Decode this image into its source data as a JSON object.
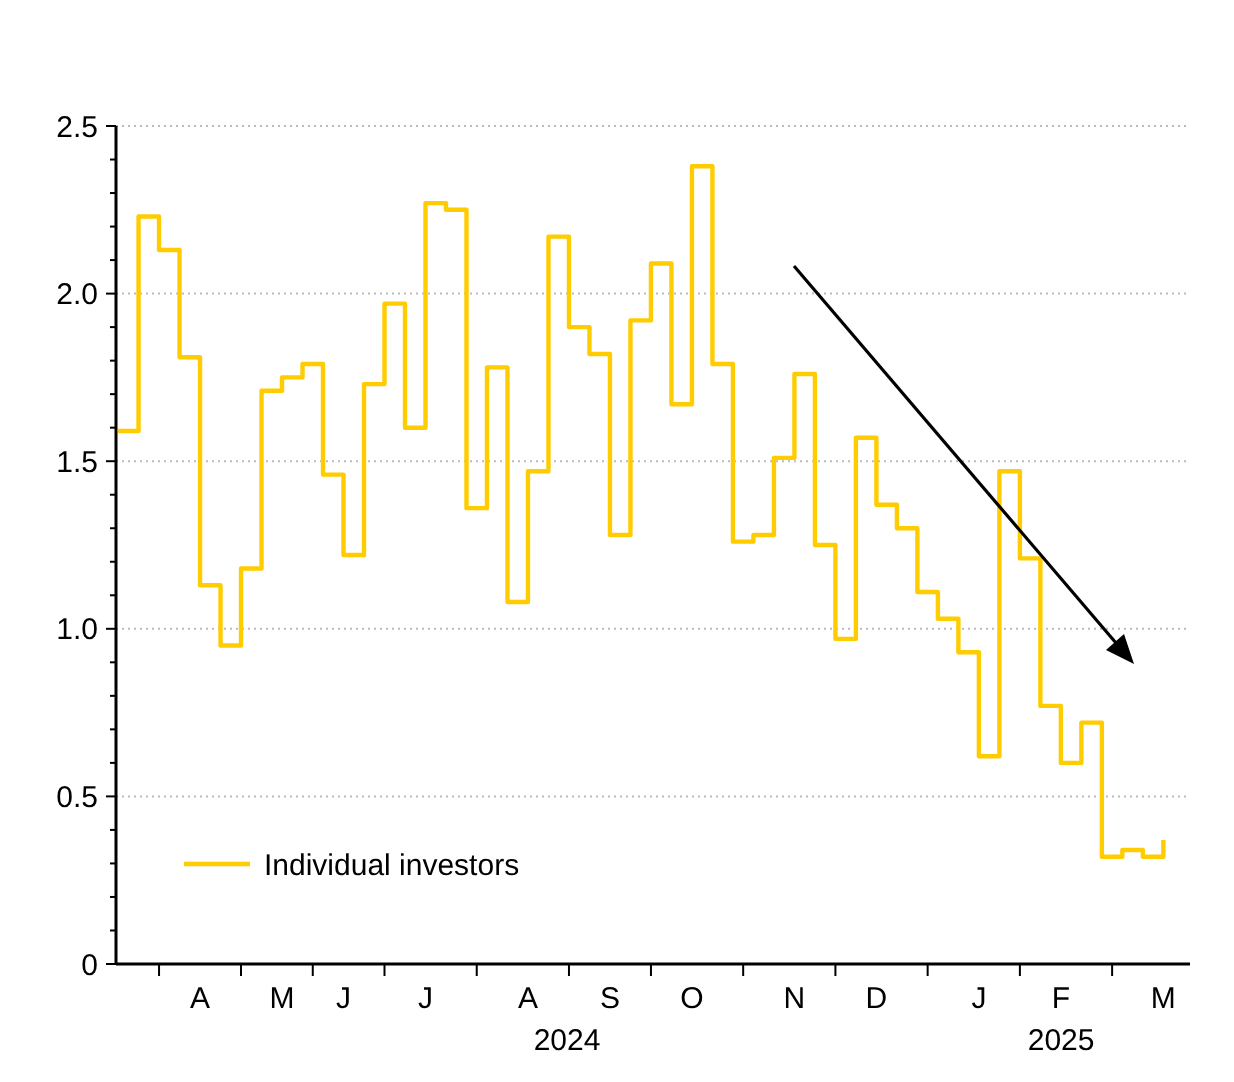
{
  "chart_data": {
    "type": "step",
    "categories": [
      null,
      null,
      null,
      null,
      "A",
      null,
      null,
      null,
      "M",
      null,
      null,
      "J",
      null,
      null,
      null,
      "J",
      null,
      null,
      null,
      null,
      "A",
      null,
      null,
      null,
      "S",
      null,
      null,
      null,
      "O",
      null,
      null,
      null,
      null,
      "N",
      null,
      null,
      null,
      "D",
      null,
      null,
      null,
      null,
      "J",
      null,
      null,
      null,
      "F",
      null,
      null,
      null,
      null,
      "M"
    ],
    "series": [
      {
        "name": "Individual investors",
        "color": "#ffcc00",
        "values": [
          1.59,
          2.23,
          2.13,
          1.81,
          1.13,
          0.95,
          1.18,
          1.71,
          1.75,
          1.79,
          1.46,
          1.22,
          1.73,
          1.97,
          1.6,
          2.27,
          2.25,
          1.36,
          1.78,
          1.08,
          1.47,
          2.17,
          1.9,
          1.82,
          1.28,
          1.92,
          2.09,
          1.67,
          2.38,
          1.79,
          1.26,
          1.28,
          1.51,
          1.76,
          1.25,
          0.97,
          1.57,
          1.37,
          1.3,
          1.11,
          1.03,
          0.93,
          0.62,
          1.47,
          1.21,
          0.77,
          0.6,
          0.72,
          0.32,
          0.34,
          0.32,
          0.37
        ]
      }
    ],
    "ylim": [
      0,
      2.5
    ],
    "yticks": [
      0,
      {
        "value": 0.1,
        "label": null
      },
      {
        "value": 0.2,
        "label": null
      },
      {
        "value": 0.3,
        "label": null
      },
      {
        "value": 0.4,
        "label": null
      },
      {
        "value": 0.5,
        "label": "0.5"
      },
      {
        "value": 0.6,
        "label": null
      },
      {
        "value": 0.7,
        "label": null
      },
      {
        "value": 0.8,
        "label": null
      },
      {
        "value": 0.9,
        "label": null
      },
      {
        "value": 1,
        "label": "1.0"
      },
      {
        "value": 1.1,
        "label": null
      },
      {
        "value": 1.2,
        "label": null
      },
      {
        "value": 1.3,
        "label": null
      },
      {
        "value": 1.4,
        "label": null
      },
      {
        "value": 1.5,
        "label": "1.5"
      },
      {
        "value": 1.6,
        "label": null
      },
      {
        "value": 1.7,
        "label": null
      },
      {
        "value": 1.8,
        "label": null
      },
      {
        "value": 1.9,
        "label": null
      },
      {
        "value": 2,
        "label": "2.0"
      },
      {
        "value": 2.1,
        "label": null
      },
      {
        "value": 2.2,
        "label": null
      },
      {
        "value": 2.3,
        "label": null
      },
      {
        "value": 2.4,
        "label": null
      },
      {
        "value": 2.5,
        "label": "2.5"
      }
    ],
    "annotations": [
      "2024",
      "2025"
    ],
    "grid": "y",
    "legend": "bottom left"
  }
}
